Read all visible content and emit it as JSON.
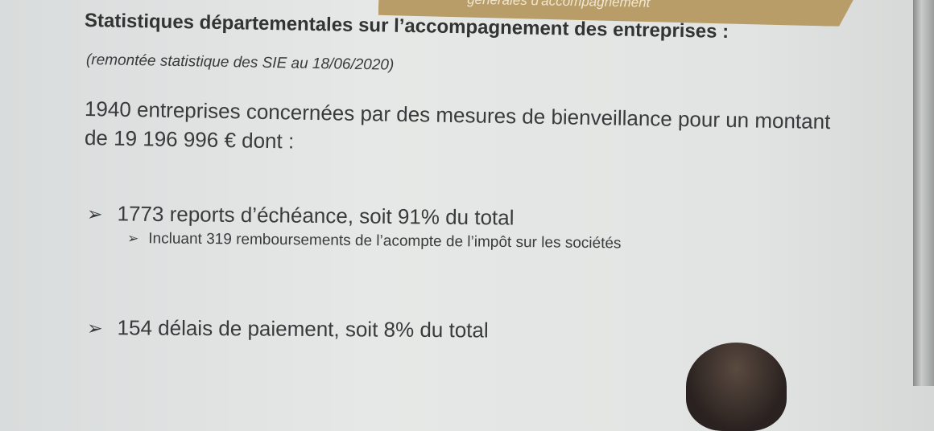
{
  "banner": {
    "text": "générales d'accompagnement",
    "color": "#b89d68"
  },
  "slide": {
    "title": "Statistiques départementales sur l’accompagnement des entreprises :",
    "subtitle": "(remontée statistique des SIE au 18/06/2020)",
    "intro_line1": "1940 entreprises concernées par des mesures de bienveillance pour un montant",
    "intro_line2": "de 19 196 996 € dont :",
    "bullets": [
      {
        "marker": "➢",
        "text": "1773 reports d’échéance, soit 91% du total"
      },
      {
        "marker": "➢",
        "text": "Incluant 319 remboursements de l’acompte de l’impôt sur les sociétés"
      },
      {
        "marker": "➢",
        "text": "154 délais de paiement, soit 8% du total"
      }
    ]
  }
}
